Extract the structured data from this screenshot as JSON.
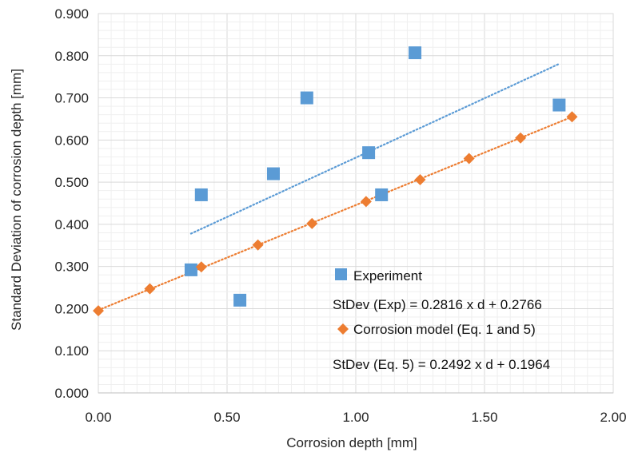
{
  "chart_data": {
    "type": "scatter",
    "xlabel": "Corrosion depth [mm]",
    "ylabel": "Standard Deviation of corrosion depth [mm]",
    "xlim": [
      0,
      2
    ],
    "ylim": [
      0,
      0.9
    ],
    "x_ticks": [
      "0.00",
      "0.50",
      "1.00",
      "1.50",
      "2.00"
    ],
    "y_ticks": [
      "0.000",
      "0.100",
      "0.200",
      "0.300",
      "0.400",
      "0.500",
      "0.600",
      "0.700",
      "0.800",
      "0.900"
    ],
    "grid": "major and minor",
    "legend_position": "center-right",
    "series": [
      {
        "name": "Experiment",
        "marker": "square",
        "color": "#5B9BD5",
        "points": [
          {
            "x": 0.36,
            "y": 0.292
          },
          {
            "x": 0.4,
            "y": 0.47
          },
          {
            "x": 0.55,
            "y": 0.22
          },
          {
            "x": 0.68,
            "y": 0.52
          },
          {
            "x": 0.81,
            "y": 0.7
          },
          {
            "x": 1.05,
            "y": 0.57
          },
          {
            "x": 1.1,
            "y": 0.47
          },
          {
            "x": 1.23,
            "y": 0.807
          },
          {
            "x": 1.79,
            "y": 0.683
          }
        ],
        "trendline": {
          "color": "#5B9BD5",
          "style": "dotted",
          "x_from": 0.36,
          "x_to": 1.79,
          "slope": 0.2816,
          "intercept": 0.2766
        }
      },
      {
        "name": "Corrosion model (Eq. 1 and 5)",
        "marker": "diamond",
        "color": "#ED7D31",
        "points": [
          {
            "x": 0.0,
            "y": 0.195
          },
          {
            "x": 0.2,
            "y": 0.247
          },
          {
            "x": 0.4,
            "y": 0.299
          },
          {
            "x": 0.62,
            "y": 0.351
          },
          {
            "x": 0.83,
            "y": 0.402
          },
          {
            "x": 1.04,
            "y": 0.454
          },
          {
            "x": 1.25,
            "y": 0.506
          },
          {
            "x": 1.44,
            "y": 0.556
          },
          {
            "x": 1.64,
            "y": 0.605
          },
          {
            "x": 1.84,
            "y": 0.655
          }
        ],
        "trendline": {
          "color": "#ED7D31",
          "style": "dotted",
          "x_from": 0.0,
          "x_to": 1.84,
          "slope": 0.2492,
          "intercept": 0.1964
        }
      }
    ],
    "legend": {
      "entries": [
        {
          "label": "Experiment",
          "marker": "square",
          "color": "#5B9BD5"
        },
        {
          "label": "Corrosion model (Eq. 1 and 5)",
          "marker": "diamond",
          "color": "#ED7D31"
        }
      ],
      "equations": [
        "StDev (Exp) = 0.2816 x d + 0.2766",
        "StDev (Eq. 5) = 0.2492 x d + 0.1964"
      ]
    }
  }
}
